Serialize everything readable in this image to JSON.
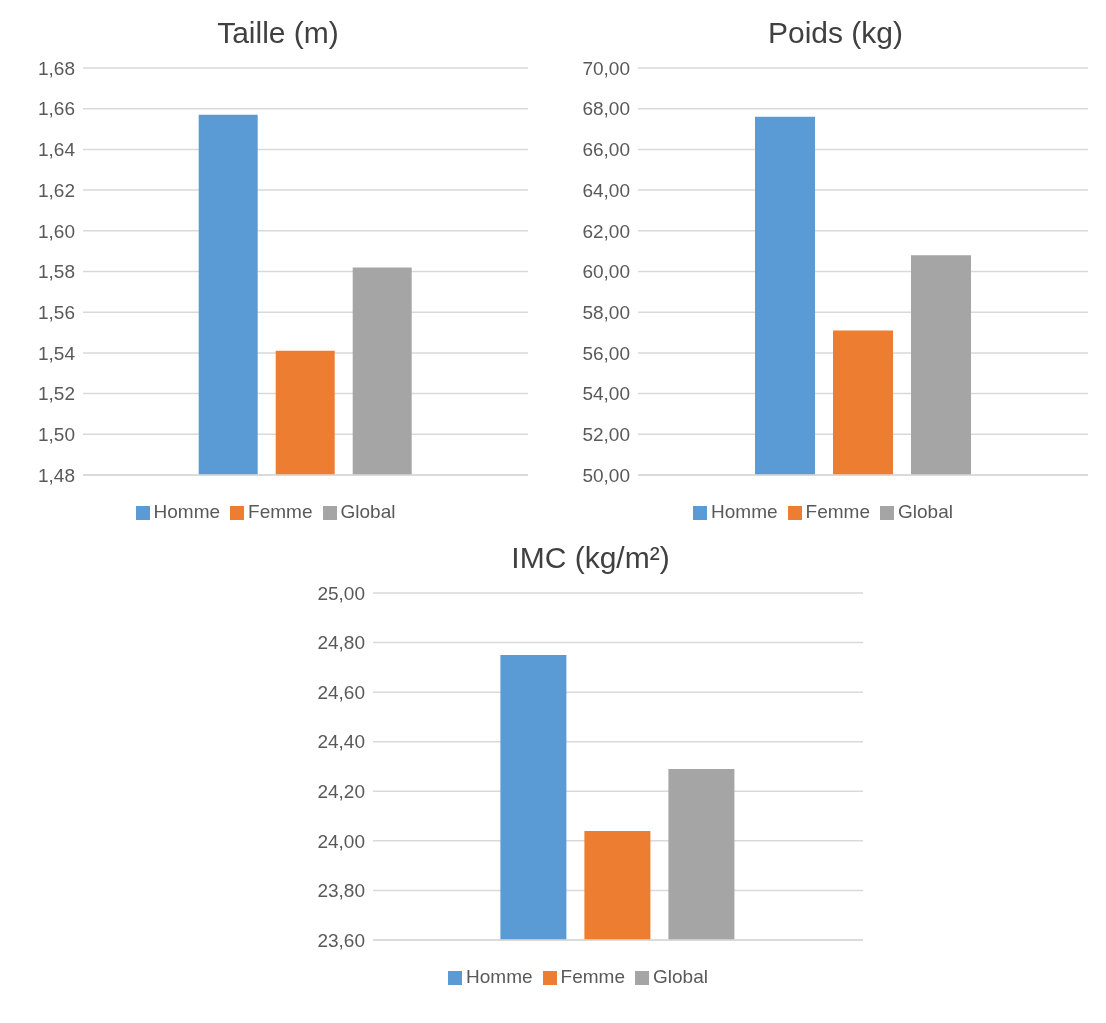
{
  "chart_data": [
    {
      "type": "bar",
      "title": "Taille (m)",
      "categories": [
        null
      ],
      "series": [
        {
          "name": "Homme",
          "color": "#5b9bd5",
          "values": [
            1.657
          ]
        },
        {
          "name": "Femme",
          "color": "#ed7d31",
          "values": [
            1.541
          ]
        },
        {
          "name": "Global",
          "color": "#a5a5a5",
          "values": [
            1.582
          ]
        }
      ],
      "ylim": [
        1.48,
        1.68
      ],
      "yticks": [
        {
          "value": 1.48,
          "label": "1,48"
        },
        {
          "value": 1.5,
          "label": "1,50"
        },
        {
          "value": 1.52,
          "label": "1,52"
        },
        {
          "value": 1.54,
          "label": "1,54"
        },
        {
          "value": 1.56,
          "label": "1,56"
        },
        {
          "value": 1.58,
          "label": "1,58"
        },
        {
          "value": 1.6,
          "label": "1,60"
        },
        {
          "value": 1.62,
          "label": "1,62"
        },
        {
          "value": 1.64,
          "label": "1,64"
        },
        {
          "value": 1.66,
          "label": "1,66"
        },
        {
          "value": 1.68,
          "label": "1,68"
        }
      ],
      "grid": "y",
      "legend": "bottom"
    },
    {
      "type": "bar",
      "title": "Poids (kg)",
      "categories": [
        null
      ],
      "series": [
        {
          "name": "Homme",
          "color": "#5b9bd5",
          "values": [
            67.6
          ]
        },
        {
          "name": "Femme",
          "color": "#ed7d31",
          "values": [
            57.1
          ]
        },
        {
          "name": "Global",
          "color": "#a5a5a5",
          "values": [
            60.8
          ]
        }
      ],
      "ylim": [
        50,
        70
      ],
      "yticks": [
        {
          "value": 50,
          "label": "50,00"
        },
        {
          "value": 52,
          "label": "52,00"
        },
        {
          "value": 54,
          "label": "54,00"
        },
        {
          "value": 56,
          "label": "56,00"
        },
        {
          "value": 58,
          "label": "58,00"
        },
        {
          "value": 60,
          "label": "60,00"
        },
        {
          "value": 62,
          "label": "62,00"
        },
        {
          "value": 64,
          "label": "64,00"
        },
        {
          "value": 66,
          "label": "66,00"
        },
        {
          "value": 68,
          "label": "68,00"
        },
        {
          "value": 70,
          "label": "70,00"
        }
      ],
      "grid": "y",
      "legend": "bottom"
    },
    {
      "type": "bar",
      "title": "IMC (kg/m²)",
      "categories": [
        null
      ],
      "series": [
        {
          "name": "Homme",
          "color": "#5b9bd5",
          "values": [
            24.75
          ]
        },
        {
          "name": "Femme",
          "color": "#ed7d31",
          "values": [
            24.04
          ]
        },
        {
          "name": "Global",
          "color": "#a5a5a5",
          "values": [
            24.29
          ]
        }
      ],
      "ylim": [
        23.6,
        25
      ],
      "yticks": [
        {
          "value": 23.6,
          "label": "23,60"
        },
        {
          "value": 23.8,
          "label": "23,80"
        },
        {
          "value": 24,
          "label": "24,00"
        },
        {
          "value": 24.2,
          "label": "24,20"
        },
        {
          "value": 24.4,
          "label": "24,40"
        },
        {
          "value": 24.6,
          "label": "24,60"
        },
        {
          "value": 24.8,
          "label": "24,80"
        },
        {
          "value": 25,
          "label": "25,00"
        }
      ],
      "grid": "y",
      "legend": "bottom"
    }
  ]
}
